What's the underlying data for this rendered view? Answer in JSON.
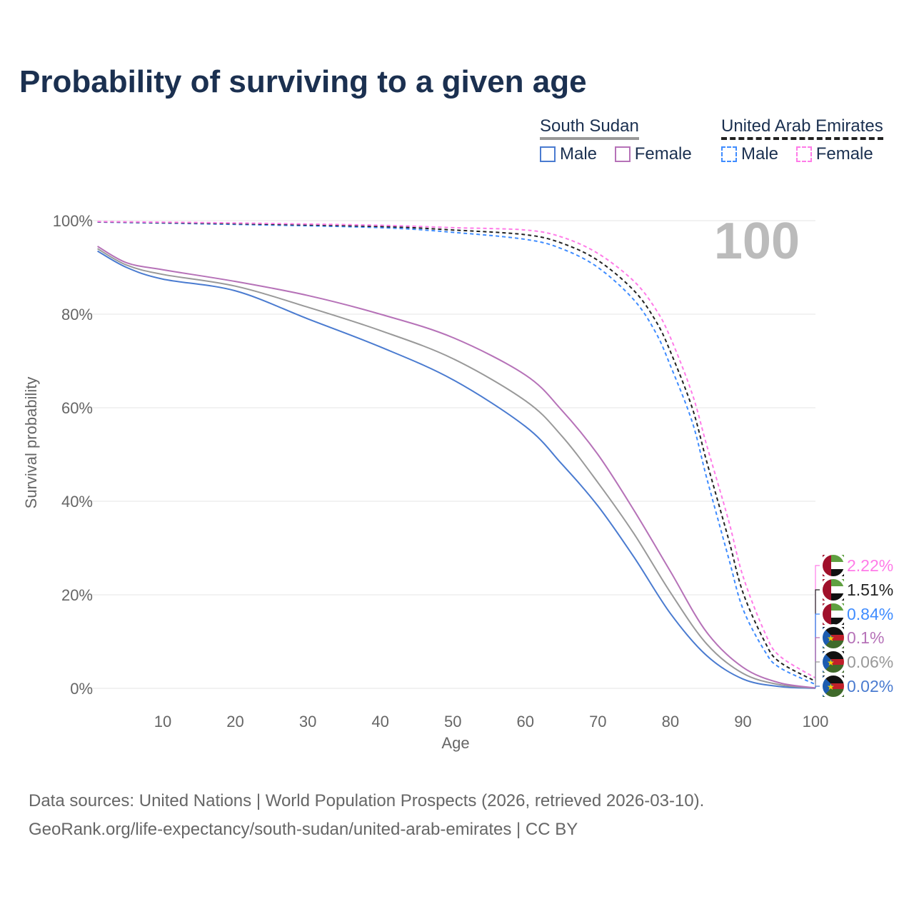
{
  "title": "Probability of surviving to a given age",
  "legend": {
    "groups": [
      {
        "name": "South Sudan",
        "items": [
          "Male",
          "Female"
        ]
      },
      {
        "name": "United Arab Emirates",
        "items": [
          "Male",
          "Female"
        ]
      }
    ]
  },
  "year_label": "100",
  "source_line1": "Data sources: United Nations | World Population Prospects (2026, retrieved 2026-03-10).",
  "source_line2": "GeoRank.org/life-expectancy/south-sudan/united-arab-emirates | CC BY",
  "chart_data": {
    "type": "line",
    "title": "Probability of surviving to a given age",
    "xlabel": "Age",
    "ylabel": "Survival probability",
    "xlim": [
      0,
      100
    ],
    "ylim": [
      0,
      100
    ],
    "xticks": [
      10,
      20,
      30,
      40,
      50,
      60,
      70,
      80,
      90,
      100
    ],
    "yticks": [
      {
        "v": 0,
        "l": "0%"
      },
      {
        "v": 20,
        "l": "20%"
      },
      {
        "v": 40,
        "l": "40%"
      },
      {
        "v": 60,
        "l": "60%"
      },
      {
        "v": 80,
        "l": "80%"
      },
      {
        "v": 100,
        "l": "100%"
      }
    ],
    "series": [
      {
        "name": "South Sudan Male",
        "color": "#4a7bd0",
        "dash": false,
        "end_label": "0.02%",
        "flag": "ss",
        "x": [
          1,
          5,
          10,
          20,
          30,
          40,
          50,
          60,
          65,
          70,
          75,
          80,
          85,
          90,
          95,
          100
        ],
        "y": [
          93.5,
          90,
          87.5,
          85,
          79,
          73,
          66,
          56,
          48,
          39,
          28,
          16,
          7,
          2,
          0.4,
          0.02
        ]
      },
      {
        "name": "South Sudan Both",
        "color": "#999999",
        "dash": false,
        "end_label": "0.06%",
        "flag": "ss",
        "x": [
          1,
          5,
          10,
          20,
          30,
          40,
          50,
          60,
          65,
          70,
          75,
          80,
          85,
          90,
          95,
          100
        ],
        "y": [
          94,
          90.5,
          88.5,
          86,
          81.5,
          76.5,
          70.5,
          61.5,
          54,
          44,
          33,
          20.5,
          9.5,
          3.2,
          0.8,
          0.06
        ]
      },
      {
        "name": "South Sudan Female",
        "color": "#b672b8",
        "dash": false,
        "end_label": "0.1%",
        "flag": "ss",
        "x": [
          1,
          5,
          10,
          20,
          30,
          40,
          50,
          60,
          65,
          70,
          75,
          80,
          85,
          90,
          95,
          100
        ],
        "y": [
          94.5,
          91,
          89.5,
          87,
          84,
          80,
          75,
          67,
          59.5,
          50,
          38,
          25,
          12,
          4.5,
          1.2,
          0.1
        ]
      },
      {
        "name": "United Arab Emirates Male",
        "color": "#3f8cff",
        "dash": true,
        "end_label": "0.84%",
        "flag": "ae",
        "x": [
          1,
          20,
          40,
          50,
          60,
          65,
          70,
          75,
          78,
          80,
          83,
          85,
          88,
          90,
          93,
          95,
          100
        ],
        "y": [
          99.7,
          99.2,
          98.5,
          97.5,
          96,
          94,
          90,
          83,
          76,
          69,
          57,
          45,
          28,
          17,
          8,
          4.5,
          0.84
        ]
      },
      {
        "name": "United Arab Emirates Both",
        "color": "#222222",
        "dash": true,
        "end_label": "1.51%",
        "flag": "ae",
        "x": [
          1,
          20,
          40,
          50,
          60,
          65,
          70,
          75,
          78,
          80,
          83,
          85,
          88,
          90,
          93,
          95,
          100
        ],
        "y": [
          99.75,
          99.35,
          98.75,
          98,
          97,
          95.2,
          91.5,
          85,
          78.5,
          72,
          60,
          48.5,
          32,
          20.5,
          10,
          5.7,
          1.51
        ]
      },
      {
        "name": "United Arab Emirates Female",
        "color": "#ff7be8",
        "dash": true,
        "end_label": "2.22%",
        "flag": "ae",
        "x": [
          1,
          20,
          40,
          50,
          60,
          65,
          70,
          75,
          78,
          80,
          83,
          85,
          88,
          90,
          93,
          95,
          100
        ],
        "y": [
          99.8,
          99.5,
          99,
          98.5,
          98,
          96.5,
          93,
          87,
          81,
          75,
          63,
          52,
          36,
          24,
          12,
          7,
          2.22
        ]
      }
    ]
  }
}
